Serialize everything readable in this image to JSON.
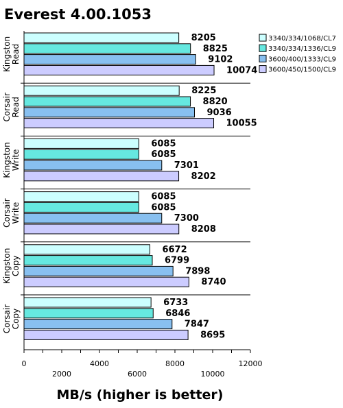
{
  "chart_data": {
    "type": "bar",
    "orientation": "horizontal",
    "title": "Everest 4.00.1053",
    "xlabel": "MB/s (higher is better)",
    "ylabel": "",
    "xlim": [
      0,
      12000
    ],
    "xticks": [
      0,
      2000,
      4000,
      6000,
      8000,
      10000,
      12000
    ],
    "grid": false,
    "legend_position": "right",
    "categories": [
      [
        "Kingston",
        "Read"
      ],
      [
        "Corsair",
        "Read"
      ],
      [
        "Kingston",
        "Write"
      ],
      [
        "Corsair",
        "Write"
      ],
      [
        "Kingston",
        "Copy"
      ],
      [
        "Corsair",
        "Copy"
      ]
    ],
    "series": [
      {
        "name": "3340/334/1068/CL7",
        "color": "#ccffff",
        "values": [
          8205,
          8225,
          6085,
          6085,
          6672,
          6733
        ]
      },
      {
        "name": "3340/334/1336/CL9",
        "color": "#66e8e0",
        "values": [
          8825,
          8820,
          6085,
          6085,
          6799,
          6846
        ]
      },
      {
        "name": "3600/400/1333/CL9",
        "color": "#88c0f0",
        "values": [
          9102,
          9036,
          7301,
          7300,
          7898,
          7847
        ]
      },
      {
        "name": "3600/450/1500/CL9",
        "color": "#ccccff",
        "values": [
          10074,
          10055,
          8202,
          8208,
          8740,
          8695
        ]
      }
    ]
  }
}
